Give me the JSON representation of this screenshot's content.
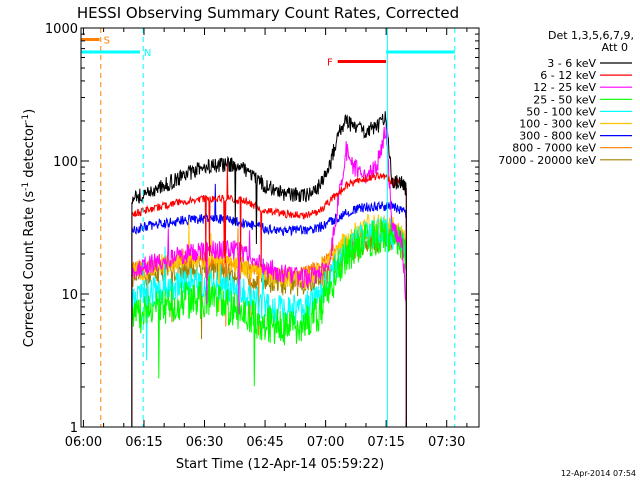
{
  "chart_data": {
    "type": "line",
    "title": "HESSI Observing Summary Count Rates, Corrected",
    "xlabel": "Start Time (12-Apr-14 05:59:22)",
    "ylabel_main": "Corrected Count Rate (s",
    "ylabel_sup1": "-1",
    "ylabel_mid": " detector",
    "ylabel_sup2": "-1",
    "ylabel_end": ")",
    "x_unit": "minutes after 06:00",
    "xlim": [
      -0.6,
      98
    ],
    "xticks": [
      {
        "pos": 0,
        "label": "06:00"
      },
      {
        "pos": 15,
        "label": "06:15"
      },
      {
        "pos": 30,
        "label": "06:30"
      },
      {
        "pos": 45,
        "label": "06:45"
      },
      {
        "pos": 60,
        "label": "07:00"
      },
      {
        "pos": 75,
        "label": "07:15"
      },
      {
        "pos": 90,
        "label": "07:30"
      }
    ],
    "y_scale": "log",
    "ylim": [
      1,
      1000
    ],
    "yticks": [
      {
        "value": 1,
        "label": "1"
      },
      {
        "value": 10,
        "label": "10"
      },
      {
        "value": 100,
        "label": "100"
      },
      {
        "value": 1000,
        "label": "1000"
      }
    ],
    "legend": {
      "header1": "Det 1,3,5,6,7,9,",
      "header2": "Att 0",
      "placement": "right"
    },
    "series": [
      {
        "name": "3 - 6 keV",
        "color": "#000000",
        "noise": 0.06,
        "x": [
          12,
          15,
          20,
          25,
          30,
          36,
          40,
          45,
          50,
          55,
          58,
          61,
          63,
          65,
          67,
          70,
          73,
          75,
          76.5,
          79,
          80
        ],
        "y": [
          53,
          56,
          65,
          78,
          90,
          95,
          88,
          65,
          56,
          55,
          62,
          90,
          160,
          200,
          180,
          170,
          180,
          220,
          70,
          68,
          60
        ]
      },
      {
        "name": "6 - 12 keV",
        "color": "#ff0000",
        "noise": 0.03,
        "x": [
          12,
          15,
          20,
          25,
          30,
          36,
          40,
          45,
          50,
          55,
          58,
          61,
          65,
          70,
          73,
          75,
          76.5,
          79,
          80
        ],
        "y": [
          40,
          42,
          46,
          50,
          52,
          52,
          50,
          42,
          40,
          39,
          41,
          50,
          65,
          75,
          77,
          75,
          70,
          68,
          62
        ]
      },
      {
        "name": "12 - 25 keV",
        "color": "#ff00ff",
        "noise": 0.08,
        "x": [
          12,
          15,
          20,
          25,
          30,
          36,
          40,
          45,
          50,
          55,
          58,
          61,
          63,
          65,
          67,
          70,
          73,
          75,
          76.5,
          79,
          80
        ],
        "y": [
          15,
          16,
          18,
          20,
          21,
          22,
          20,
          16,
          14,
          13,
          14,
          18,
          45,
          120,
          90,
          70,
          100,
          180,
          30,
          25,
          8
        ]
      },
      {
        "name": "25 - 50 keV",
        "color": "#00ff00",
        "noise": 0.15,
        "x": [
          12,
          15,
          20,
          25,
          30,
          36,
          40,
          45,
          50,
          55,
          58,
          62,
          65,
          70,
          75,
          78,
          80
        ],
        "y": [
          7,
          7,
          8,
          9,
          9,
          8,
          7,
          6,
          5.5,
          6,
          7,
          13,
          20,
          26,
          28,
          25,
          18
        ]
      },
      {
        "name": "50 - 100 keV",
        "color": "#00ffff",
        "noise": 0.12,
        "x": [
          12,
          15,
          20,
          25,
          30,
          36,
          40,
          45,
          50,
          55,
          58,
          62,
          65,
          70,
          75,
          78,
          80
        ],
        "y": [
          10,
          10,
          11,
          12,
          12,
          11,
          10,
          8,
          7.5,
          8,
          9,
          15,
          22,
          28,
          30,
          26,
          20
        ]
      },
      {
        "name": "100 - 300 keV",
        "color": "#ffc800",
        "noise": 0.08,
        "x": [
          12,
          15,
          20,
          25,
          30,
          36,
          40,
          45,
          50,
          55,
          58,
          62,
          65,
          70,
          75,
          78,
          80
        ],
        "y": [
          15,
          15,
          17,
          18,
          19,
          18,
          16,
          14,
          13,
          13,
          15,
          20,
          26,
          33,
          35,
          30,
          25
        ]
      },
      {
        "name": "300 - 800 keV",
        "color": "#0000ff",
        "noise": 0.04,
        "x": [
          12,
          15,
          20,
          25,
          30,
          36,
          40,
          45,
          50,
          55,
          58,
          62,
          65,
          70,
          75,
          78,
          80
        ],
        "y": [
          30,
          32,
          34,
          36,
          37,
          36,
          34,
          31,
          30,
          30,
          31,
          36,
          41,
          45,
          46,
          44,
          40
        ]
      },
      {
        "name": "800 - 7000 keV",
        "color": "#ff8000",
        "noise": 0.05,
        "x": [
          12,
          15,
          20,
          25,
          30,
          36,
          40,
          45,
          50,
          55,
          58,
          62,
          65,
          70,
          75,
          78,
          80
        ],
        "y": [
          16,
          16,
          17,
          18,
          18,
          17,
          16,
          15,
          14,
          15,
          16,
          20,
          24,
          28,
          30,
          27,
          22
        ]
      },
      {
        "name": "7000 - 20000 keV",
        "color": "#a08000",
        "noise": 0.1,
        "x": [
          12,
          15,
          20,
          25,
          30,
          36,
          40,
          45,
          50,
          55,
          58,
          62,
          65,
          70,
          75,
          78,
          80
        ],
        "y": [
          14,
          14,
          15,
          15,
          16,
          15,
          14,
          13,
          12,
          12,
          13,
          16,
          20,
          24,
          26,
          24,
          20
        ]
      }
    ],
    "flags": [
      {
        "label": "S",
        "color": "#ff8000",
        "x_start": -0.6,
        "x_end": 4,
        "y": 820
      },
      {
        "label": "N",
        "color": "#00ffff",
        "x_start": -0.6,
        "x_end": 14,
        "y": 660
      },
      {
        "label": "N",
        "color": "#00ffff",
        "x_start": 75,
        "x_end": 92,
        "y": 660,
        "hide_label": true
      },
      {
        "label": "F",
        "color": "#ff0000",
        "x_start": 63,
        "x_end": 75,
        "y": 560
      }
    ],
    "vlines": [
      {
        "x": 4.3,
        "color": "#ff8000",
        "style": "dashed"
      },
      {
        "x": 14.8,
        "color": "#00ffff",
        "style": "dashed"
      },
      {
        "x": 75.3,
        "color": "#00ffff",
        "style": "solid"
      },
      {
        "x": 92,
        "color": "#00ffff",
        "style": "dashed"
      }
    ],
    "grid": false
  },
  "footer": {
    "timestamp": "12-Apr-2014 07:54"
  }
}
